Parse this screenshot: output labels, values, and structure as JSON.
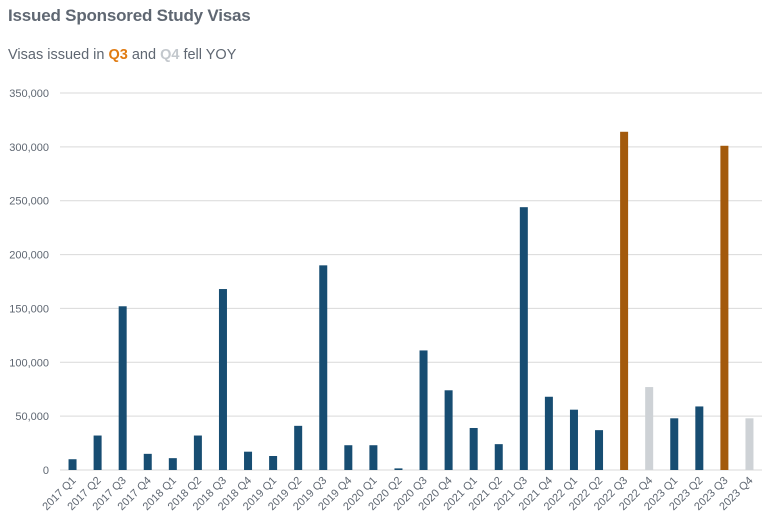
{
  "title": "Issued Sponsored Study Visas",
  "subtitle": {
    "prefix": "Visas issued in ",
    "q3": "Q3",
    "mid": " and ",
    "q4": "Q4",
    "suffix": " fell YOY"
  },
  "colors": {
    "default": "#174d72",
    "highlight_q3": "#a35a0c",
    "highlight_q4": "#ced2d6",
    "subtitle_q3": "#e07b12",
    "subtitle_q4": "#c3c8cd",
    "grid": "#d9d9d9",
    "text": "#5f6772"
  },
  "chart_data": {
    "type": "bar",
    "title": "Issued Sponsored Study Visas",
    "xlabel": "",
    "ylabel": "",
    "ylim": [
      0,
      350000
    ],
    "yticks": [
      0,
      50000,
      100000,
      150000,
      200000,
      250000,
      300000,
      350000
    ],
    "ytick_labels": [
      "0",
      "50,000",
      "100,000",
      "150,000",
      "200,000",
      "250,000",
      "300,000",
      "350,000"
    ],
    "grid": true,
    "categories": [
      "2017 Q1",
      "2017 Q2",
      "2017 Q3",
      "2017 Q4",
      "2018 Q1",
      "2018 Q2",
      "2018 Q3",
      "2018 Q4",
      "2019 Q1",
      "2019 Q2",
      "2019 Q3",
      "2019 Q4",
      "2020 Q1",
      "2020 Q2",
      "2020 Q3",
      "2020 Q4",
      "2021 Q1",
      "2021 Q2",
      "2021 Q3",
      "2021 Q4",
      "2022 Q1",
      "2022 Q2",
      "2022 Q3",
      "2022 Q4",
      "2023 Q1",
      "2023 Q2",
      "2023 Q3",
      "2023 Q4"
    ],
    "values": [
      10000,
      32000,
      152000,
      15000,
      11000,
      32000,
      168000,
      17000,
      13000,
      41000,
      190000,
      23000,
      23000,
      1500,
      111000,
      74000,
      39000,
      24000,
      244000,
      68000,
      56000,
      37000,
      314000,
      77000,
      48000,
      59000,
      301000,
      48000
    ],
    "highlight": {
      "2022 Q3": "highlight_q3",
      "2023 Q3": "highlight_q3",
      "2022 Q4": "highlight_q4",
      "2023 Q4": "highlight_q4"
    }
  }
}
